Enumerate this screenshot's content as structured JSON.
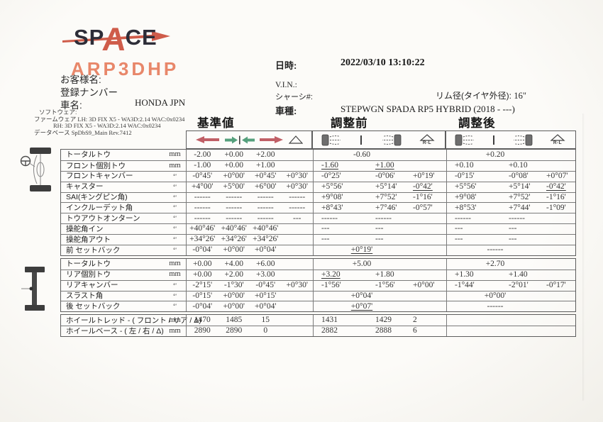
{
  "logo": {
    "brand_sp": "SP",
    "brand_a": "A",
    "brand_ce": "CE",
    "model": "ARP3DHP"
  },
  "customer": {
    "name_label": "お客様名:",
    "registration_label": "登録ナンバー",
    "car_label": "車名:",
    "car_value": "HONDA JPN"
  },
  "software": {
    "line1": "ソフトウェア:",
    "line2": "ファームウェア LH: 3D FIX X5 - WA3D:2.14 WAC:0x0234",
    "line3": "RH: 3D FIX X5 - WA3D:2.14 WAC:0x0234",
    "line4": "データベース SpDbS9_Main Rev.7412"
  },
  "info": {
    "datetime_label": "日時:",
    "datetime_value": "2022/03/10  13:10:22",
    "vin_label": "V.I.N.:",
    "chassis_label": "シャーシ#:",
    "rim_label": "リム径(タイヤ外径):",
    "rim_value": "16\"",
    "model_label": "車種:",
    "model_value": "STEPWGN SPADA RP5 HYBRID (2018 - ---)"
  },
  "sections": {
    "spec": "基準値",
    "before": "調整前",
    "after": "調整後"
  },
  "icons": {
    "rl_label": "R-L"
  },
  "colors": {
    "logo_red": "#cf5c4a",
    "logo_orange": "#e8876a",
    "arrow_red": "#c05f66",
    "arrow_green": "#55a07c",
    "value_red": "#ad5745"
  },
  "table": {
    "blocks": [
      {
        "rows": [
          {
            "label": "トータルトウ",
            "unit": "mm",
            "spec": [
              "-2.00",
              "+0.00",
              "+2.00",
              ""
            ],
            "before": {
              "center": "-0.60"
            },
            "after": {
              "center": "+0.20"
            }
          },
          {
            "label": "フロント個別トウ",
            "unit": "mm",
            "spec": [
              "-1.00",
              "+0.00",
              "+1.00",
              ""
            ],
            "before": {
              "left": "-1.60",
              "left_red": true,
              "right": "+1.00",
              "right_red": true
            },
            "after": {
              "left": "+0.10",
              "right": "+0.10"
            }
          },
          {
            "label": "フロントキャンバー",
            "unit": "°'",
            "spec": [
              "-0°45'",
              "+0°00'",
              "+0°45'",
              "+0°30'"
            ],
            "before": {
              "left": "-0°25'",
              "right": "-0°06'",
              "rl": "+0°19'"
            },
            "after": {
              "left": "-0°15'",
              "right": "-0°08'",
              "rl": "+0°07'"
            }
          },
          {
            "label": "キャスター",
            "unit": "°'",
            "spec": [
              "+4°00'",
              "+5°00'",
              "+6°00'",
              "+0°30'"
            ],
            "before": {
              "left": "+5°56'",
              "right": "+5°14'",
              "rl": "-0°42'",
              "rl_red": true
            },
            "after": {
              "left": "+5°56'",
              "right": "+5°14'",
              "rl": "-0°42'",
              "rl_red": true
            }
          },
          {
            "label": "SAI(キングピン角)",
            "unit": "°'",
            "spec": [
              "------",
              "------",
              "------",
              "------"
            ],
            "before": {
              "left": "+9°08'",
              "right": "+7°52'",
              "rl": "-1°16'"
            },
            "after": {
              "left": "+9°08'",
              "right": "+7°52'",
              "rl": "-1°16'"
            }
          },
          {
            "label": "インクルーデット角",
            "unit": "°'",
            "spec": [
              "------",
              "------",
              "------",
              "------"
            ],
            "before": {
              "left": "+8°43'",
              "right": "+7°46'",
              "rl": "-0°57'"
            },
            "after": {
              "left": "+8°53'",
              "right": "+7°44'",
              "rl": "-1°09'"
            }
          },
          {
            "label": "トウアウトオンターン",
            "unit": "°'",
            "spec": [
              "------",
              "------",
              "------",
              "---"
            ],
            "before": {
              "left": "------",
              "right": "------"
            },
            "after": {
              "left": "------",
              "right": "------"
            }
          },
          {
            "label": "操舵角イン",
            "unit": "°'",
            "spec": [
              "+40°46'",
              "+40°46'",
              "+40°46'",
              ""
            ],
            "before": {
              "left": "---",
              "right": "---"
            },
            "after": {
              "left": "---",
              "right": "---"
            }
          },
          {
            "label": "操舵角アウト",
            "unit": "°'",
            "spec": [
              "+34°26'",
              "+34°26'",
              "+34°26'",
              ""
            ],
            "before": {
              "left": "---",
              "right": "---"
            },
            "after": {
              "left": "---",
              "right": "---"
            }
          },
          {
            "label": "前 セットバック",
            "unit": "°'",
            "spec": [
              "-0°04'",
              "+0°00'",
              "+0°04'",
              ""
            ],
            "before": {
              "center": "+0°19'",
              "center_red": true
            },
            "after": {
              "center": "------"
            }
          }
        ]
      },
      {
        "rows": [
          {
            "label": "トータルトウ",
            "unit": "mm",
            "spec": [
              "+0.00",
              "+4.00",
              "+6.00",
              ""
            ],
            "before": {
              "center": "+5.00"
            },
            "after": {
              "center": "+2.70"
            }
          },
          {
            "label": "リア個別トウ",
            "unit": "mm",
            "spec": [
              "+0.00",
              "+2.00",
              "+3.00",
              ""
            ],
            "before": {
              "left": "+3.20",
              "left_red": true,
              "right": "+1.80"
            },
            "after": {
              "left": "+1.30",
              "right": "+1.40"
            }
          },
          {
            "label": "リアキャンバー",
            "unit": "°'",
            "spec": [
              "-2°15'",
              "-1°30'",
              "-0°45'",
              "+0°30'"
            ],
            "before": {
              "left": "-1°56'",
              "right": "-1°56'",
              "rl": "+0°00'"
            },
            "after": {
              "left": "-1°44'",
              "right": "-2°01'",
              "rl": "-0°17'"
            }
          },
          {
            "label": "スラスト角",
            "unit": "°'",
            "spec": [
              "-0°15'",
              "+0°00'",
              "+0°15'",
              ""
            ],
            "before": {
              "center": "+0°04'"
            },
            "after": {
              "center": "+0°00'"
            }
          },
          {
            "label": "後 セットバック",
            "unit": "°'",
            "spec": [
              "-0°04'",
              "+0°00'",
              "+0°04'",
              ""
            ],
            "before": {
              "center": "+0°07'",
              "center_red": true
            },
            "after": {
              "center": "------"
            }
          }
        ]
      },
      {
        "rows": [
          {
            "label": "ホイールトレッド - ( フロント / リア / Δ)",
            "unit": "mm",
            "spec": [
              "1470",
              "1485",
              "15",
              ""
            ],
            "before": {
              "left": "1431",
              "right": "1429",
              "rl": "2"
            },
            "after": {}
          },
          {
            "label": "ホイールベース - ( 左 / 右 / Δ)",
            "unit": "mm",
            "spec": [
              "2890",
              "2890",
              "0",
              ""
            ],
            "before": {
              "left": "2882",
              "right": "2888",
              "rl": "6"
            },
            "after": {}
          }
        ]
      }
    ]
  }
}
